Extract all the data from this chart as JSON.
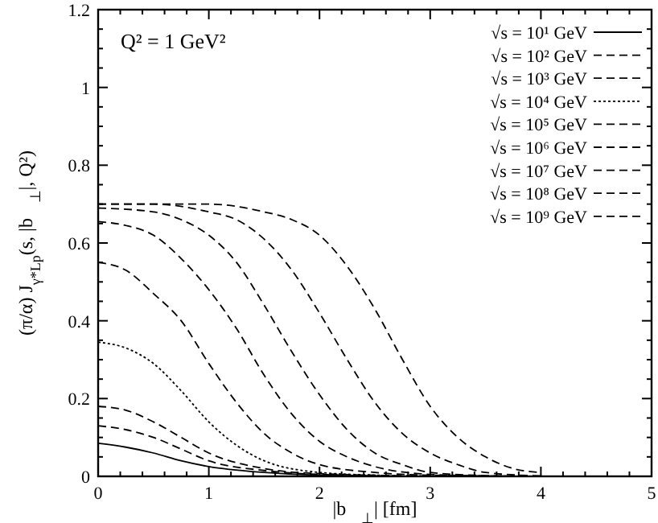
{
  "chart_data": {
    "type": "line",
    "xlabel": "|b⃗$_{⊥}$|   [fm]",
    "ylabel": "(π/α) J$_{γ*Lp}$(s, |b⃗$_{⊥}$|, Q²)",
    "annotations": [
      "Q² = 1 GeV²"
    ],
    "xlim": [
      0,
      5
    ],
    "ylim": [
      0,
      1.2
    ],
    "xticks": [
      0,
      {
        "value": 0.2,
        "label": null
      },
      {
        "value": 0.4,
        "label": null
      },
      {
        "value": 0.6,
        "label": null
      },
      {
        "value": 0.8,
        "label": null
      },
      1,
      {
        "value": 1.2,
        "label": null
      },
      {
        "value": 1.4,
        "label": null
      },
      {
        "value": 1.6,
        "label": null
      },
      {
        "value": 1.8,
        "label": null
      },
      2,
      {
        "value": 2.2,
        "label": null
      },
      {
        "value": 2.4,
        "label": null
      },
      {
        "value": 2.6,
        "label": null
      },
      {
        "value": 2.8,
        "label": null
      },
      3,
      {
        "value": 3.2,
        "label": null
      },
      {
        "value": 3.4,
        "label": null
      },
      {
        "value": 3.6,
        "label": null
      },
      {
        "value": 3.8,
        "label": null
      },
      4,
      {
        "value": 4.2,
        "label": null
      },
      {
        "value": 4.4,
        "label": null
      },
      {
        "value": 4.6,
        "label": null
      },
      {
        "value": 4.8,
        "label": null
      },
      5
    ],
    "yticks": [
      0,
      {
        "value": 0.05,
        "label": null
      },
      {
        "value": 0.1,
        "label": null
      },
      {
        "value": 0.15,
        "label": null
      },
      0.2,
      {
        "value": 0.25,
        "label": null
      },
      {
        "value": 0.3,
        "label": null
      },
      {
        "value": 0.35,
        "label": null
      },
      0.4,
      {
        "value": 0.45,
        "label": null
      },
      {
        "value": 0.5,
        "label": null
      },
      {
        "value": 0.55,
        "label": null
      },
      0.6,
      {
        "value": 0.65,
        "label": null
      },
      {
        "value": 0.7,
        "label": null
      },
      {
        "value": 0.75,
        "label": null
      },
      0.8,
      {
        "value": 0.85,
        "label": null
      },
      {
        "value": 0.9,
        "label": null
      },
      {
        "value": 0.95,
        "label": null
      },
      1,
      {
        "value": 1.05,
        "label": null
      },
      {
        "value": 1.1,
        "label": null
      },
      {
        "value": 1.15,
        "label": null
      },
      1.2
    ],
    "grid": false,
    "legend": "top right",
    "series": [
      {
        "name": "√s = 10¹ GeV",
        "color": "#000000",
        "line_style": "solid",
        "x": [
          0,
          0.25,
          0.5,
          0.75,
          1,
          1.5,
          2,
          3,
          4
        ],
        "values": [
          0.085,
          0.075,
          0.06,
          0.04,
          0.025,
          0.01,
          0.003,
          0,
          0
        ]
      },
      {
        "name": "√s = 10² GeV",
        "color": "#000000",
        "line_style": "dashed",
        "x": [
          0,
          0.25,
          0.5,
          0.75,
          1,
          1.5,
          2,
          3,
          4
        ],
        "values": [
          0.13,
          0.12,
          0.1,
          0.07,
          0.04,
          0.015,
          0.005,
          0,
          0
        ]
      },
      {
        "name": "√s = 10³ GeV",
        "color": "#000000",
        "line_style": "dashed",
        "x": [
          0,
          0.25,
          0.5,
          0.75,
          1,
          1.5,
          2,
          3,
          4
        ],
        "values": [
          0.18,
          0.17,
          0.14,
          0.1,
          0.06,
          0.02,
          0.007,
          0.001,
          0
        ]
      },
      {
        "name": "√s = 10⁴ GeV",
        "color": "#000000",
        "line_style": "dotted",
        "x": [
          0,
          0.25,
          0.5,
          0.75,
          1,
          1.25,
          1.5,
          2,
          2.5,
          3,
          4
        ],
        "values": [
          0.345,
          0.33,
          0.29,
          0.22,
          0.14,
          0.08,
          0.04,
          0.01,
          0.003,
          0,
          0
        ]
      },
      {
        "name": "√s = 10⁵ GeV",
        "color": "#000000",
        "line_style": "dashed",
        "x": [
          0,
          0.25,
          0.5,
          0.75,
          1,
          1.25,
          1.5,
          1.75,
          2,
          2.5,
          3,
          4
        ],
        "values": [
          0.55,
          0.53,
          0.47,
          0.4,
          0.29,
          0.19,
          0.11,
          0.06,
          0.03,
          0.01,
          0.003,
          0
        ]
      },
      {
        "name": "√s = 10⁶ GeV",
        "color": "#000000",
        "line_style": "dashed",
        "x": [
          0,
          0.25,
          0.5,
          0.75,
          1,
          1.25,
          1.5,
          1.75,
          2,
          2.25,
          2.5,
          3,
          3.5,
          4
        ],
        "values": [
          0.655,
          0.645,
          0.62,
          0.56,
          0.48,
          0.38,
          0.26,
          0.16,
          0.09,
          0.05,
          0.025,
          0.005,
          0.001,
          0
        ]
      },
      {
        "name": "√s = 10⁷ GeV",
        "color": "#000000",
        "line_style": "dashed",
        "x": [
          0,
          0.5,
          0.75,
          1,
          1.25,
          1.5,
          1.75,
          2,
          2.25,
          2.5,
          2.75,
          3,
          3.5,
          4
        ],
        "values": [
          0.69,
          0.68,
          0.66,
          0.62,
          0.55,
          0.44,
          0.32,
          0.21,
          0.12,
          0.06,
          0.03,
          0.01,
          0.002,
          0
        ]
      },
      {
        "name": "√s = 10⁸ GeV",
        "color": "#000000",
        "line_style": "dashed",
        "x": [
          0,
          0.5,
          1,
          1.25,
          1.5,
          1.75,
          2,
          2.25,
          2.5,
          2.75,
          3,
          3.25,
          3.5,
          4
        ],
        "values": [
          0.7,
          0.7,
          0.68,
          0.66,
          0.61,
          0.53,
          0.42,
          0.3,
          0.19,
          0.11,
          0.06,
          0.03,
          0.01,
          0.001
        ]
      },
      {
        "name": "√s = 10⁹ GeV",
        "color": "#000000",
        "line_style": "dashed",
        "x": [
          0,
          0.5,
          1,
          1.5,
          1.75,
          2,
          2.25,
          2.5,
          2.75,
          3,
          3.25,
          3.5,
          3.75,
          4
        ],
        "values": [
          0.7,
          0.7,
          0.7,
          0.68,
          0.66,
          0.62,
          0.54,
          0.43,
          0.3,
          0.18,
          0.1,
          0.05,
          0.02,
          0.01
        ]
      }
    ]
  }
}
